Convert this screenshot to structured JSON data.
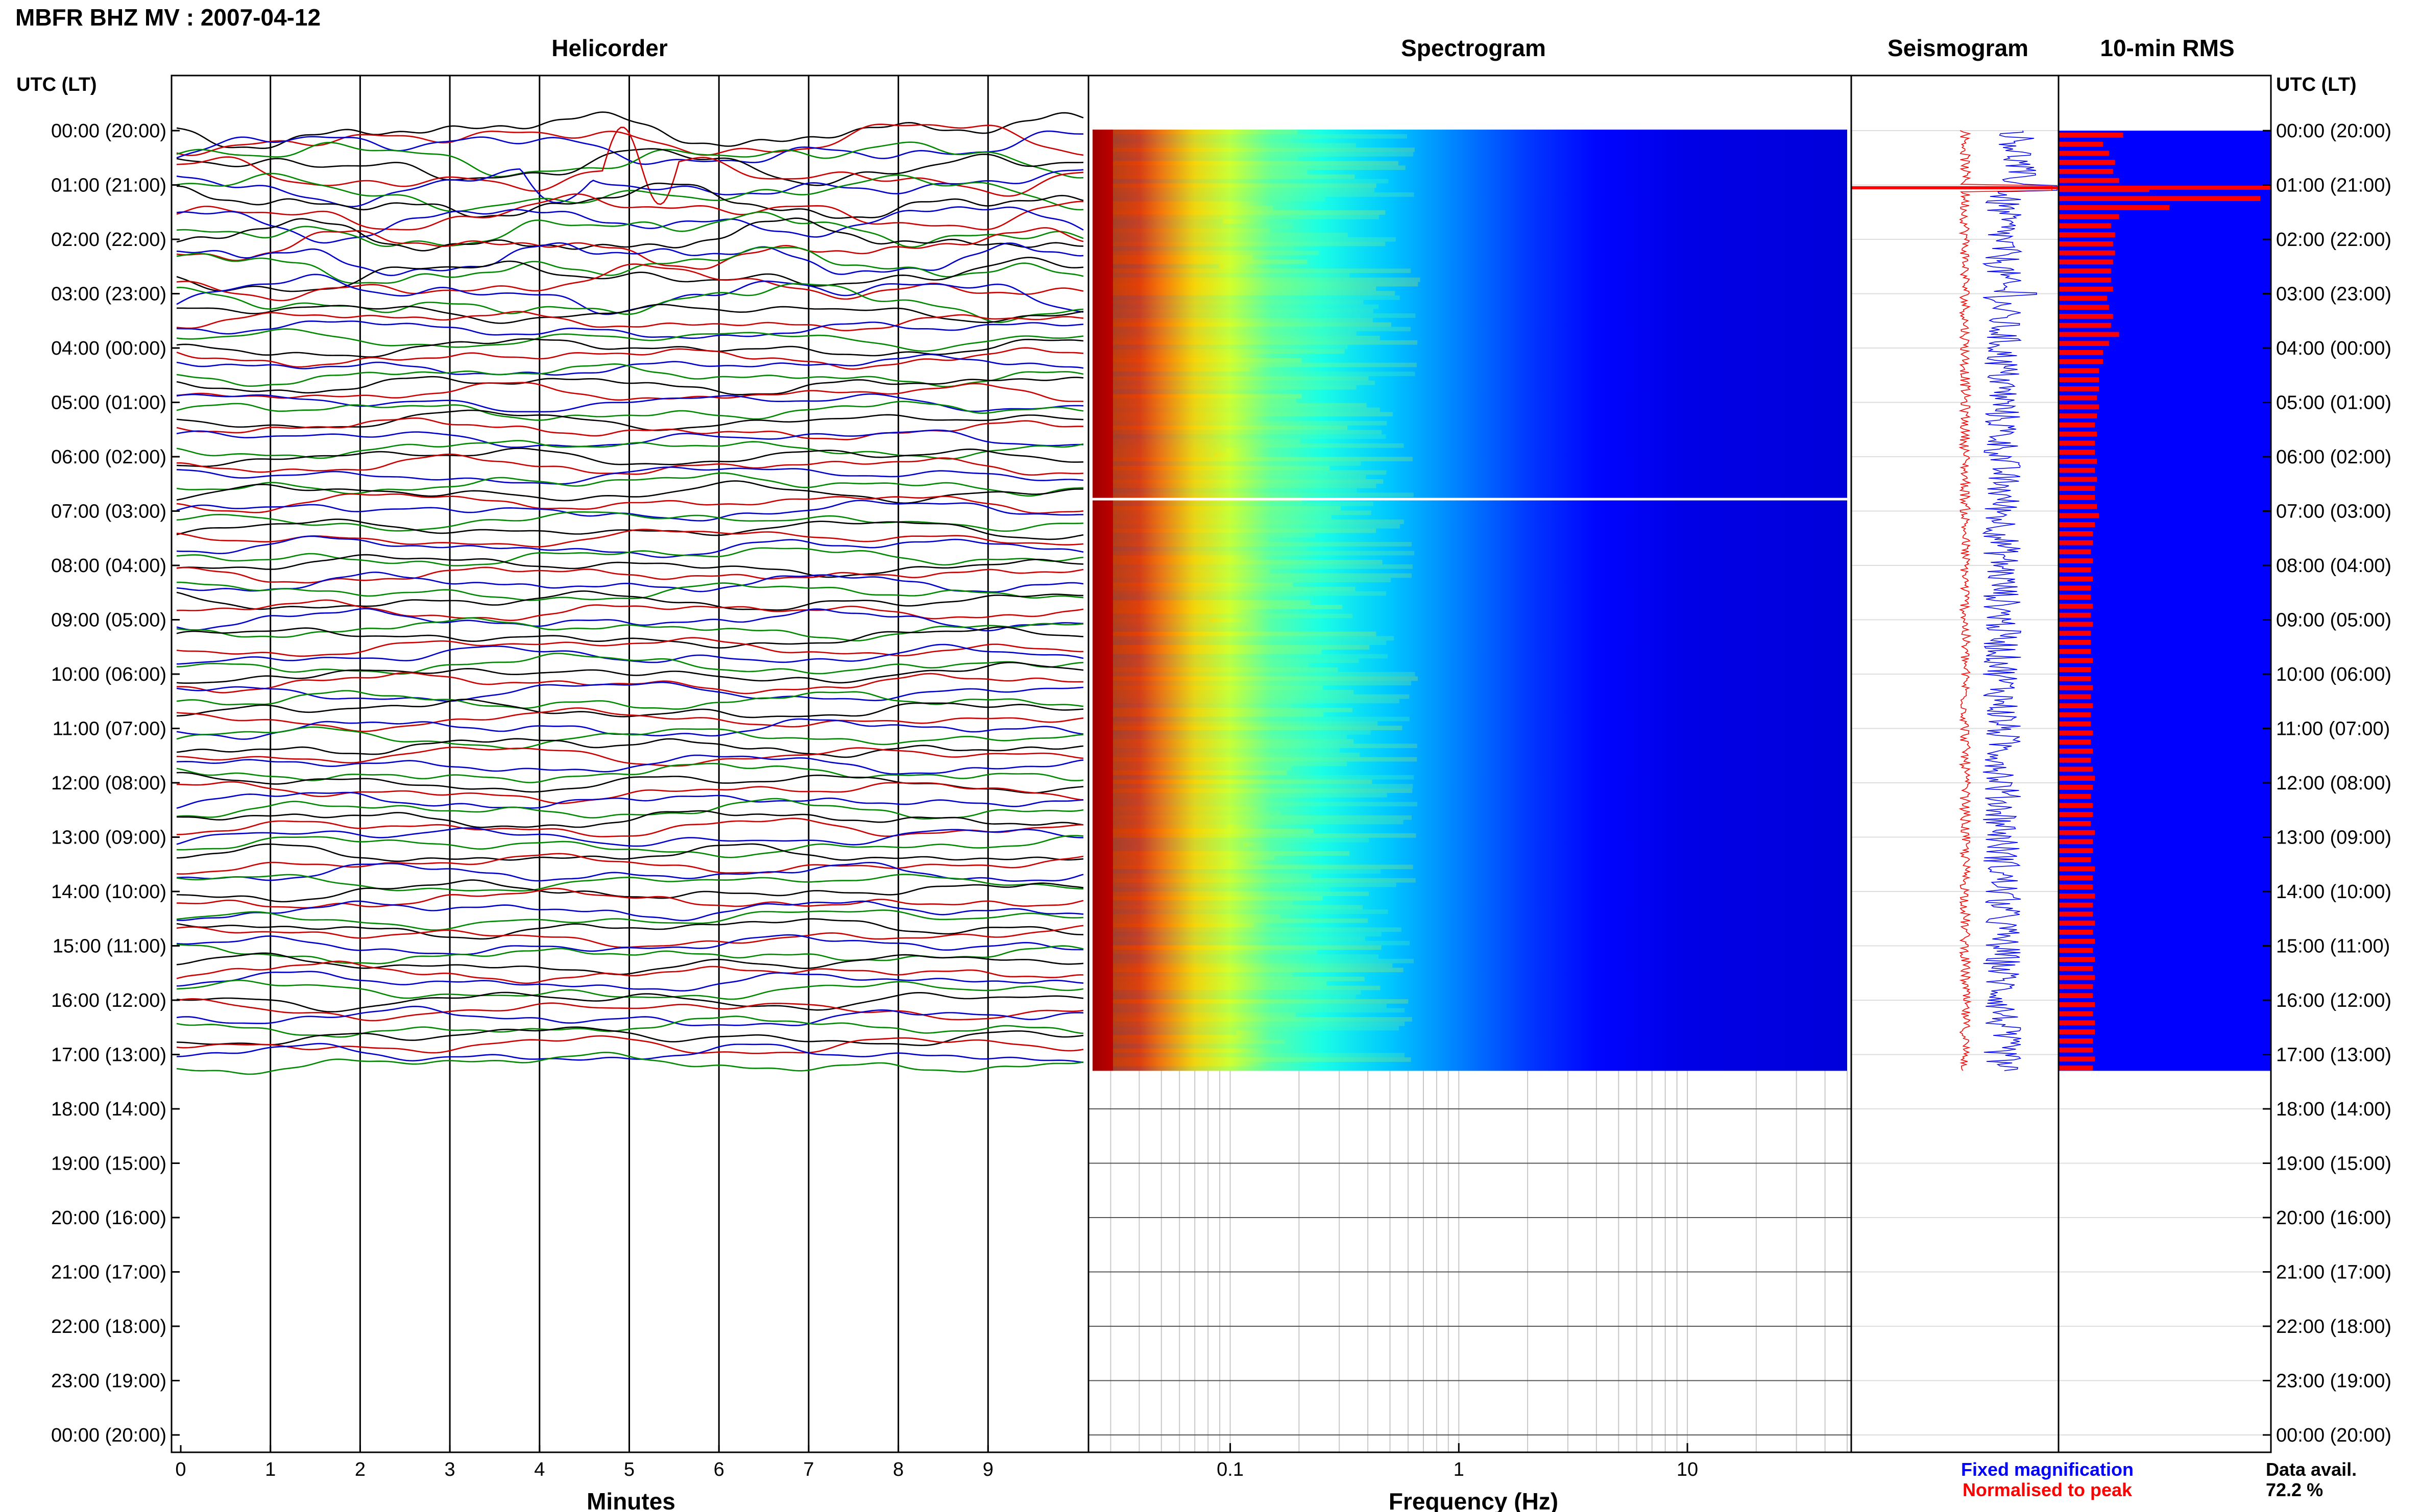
{
  "header": {
    "title": "MBFR BHZ MV : 2007-04-12",
    "utc_label_left": "UTC (LT)",
    "utc_label_right": "UTC (LT)"
  },
  "panels": {
    "helicorder_title": "Helicorder",
    "spectrogram_title": "Spectrogram",
    "seismogram_title": "Seismogram",
    "rms_title": "10-min RMS"
  },
  "time_labels": [
    "00:00 (20:00)",
    "01:00 (21:00)",
    "02:00 (22:00)",
    "03:00 (23:00)",
    "04:00 (00:00)",
    "05:00 (01:00)",
    "06:00 (02:00)",
    "07:00 (03:00)",
    "08:00 (04:00)",
    "09:00 (05:00)",
    "10:00 (06:00)",
    "11:00 (07:00)",
    "12:00 (08:00)",
    "13:00 (09:00)",
    "14:00 (10:00)",
    "15:00 (11:00)",
    "16:00 (12:00)",
    "17:00 (13:00)",
    "18:00 (14:00)",
    "19:00 (15:00)",
    "20:00 (16:00)",
    "21:00 (17:00)",
    "22:00 (18:00)",
    "23:00 (19:00)",
    "00:00 (20:00)"
  ],
  "legend": {
    "fixed": "Fixed magnification",
    "normalised": "Normalised to peak",
    "fixed_color": "#0000ff",
    "normalised_color": "#ff0000"
  },
  "availability": {
    "label": "Data avail.",
    "value": "72.2 %"
  },
  "colors": {
    "rms_background": "#0000ff",
    "rms_bar": "#ff0000",
    "seismo_fixed": "#0000ff",
    "seismo_normalised": "#ff0000",
    "trace_colors": [
      "#000000",
      "#cc0000",
      "#0000cc",
      "#008800"
    ],
    "spectrogram_colormap": "jet"
  },
  "chart_data": [
    {
      "type": "line",
      "name": "helicorder",
      "title": "Helicorder",
      "xlabel": "Minutes",
      "x_ticks": [
        "0",
        "1",
        "2",
        "3",
        "4",
        "5",
        "6",
        "7",
        "8",
        "9"
      ],
      "xlim": [
        0,
        10
      ],
      "rows_per_hour": 6,
      "data_hours": 17.3
    },
    {
      "type": "heatmap",
      "name": "spectrogram",
      "title": "Spectrogram",
      "xlabel": "Frequency (Hz)",
      "x_scale": "log",
      "x_ticks": [
        "0.1",
        "1",
        "10"
      ],
      "xlim": [
        0.025,
        50
      ],
      "data_hours": 17.3,
      "white_line_hour": 6.78
    },
    {
      "type": "line",
      "name": "seismogram",
      "title": "Seismogram",
      "series": [
        {
          "name": "Fixed magnification"
        },
        {
          "name": "Normalised to peak"
        }
      ],
      "data_hours": 17.3,
      "spike_hour": 1.05
    },
    {
      "type": "bar",
      "name": "10-min RMS",
      "title": "10-min RMS",
      "orientation": "horizontal",
      "interval_minutes": 10,
      "values": [
        0.32,
        0.22,
        0.25,
        0.28,
        0.27,
        0.3,
        0.45,
        1.0,
        0.55,
        0.3,
        0.26,
        0.28,
        0.27,
        0.28,
        0.27,
        0.26,
        0.26,
        0.27,
        0.24,
        0.25,
        0.27,
        0.26,
        0.3,
        0.25,
        0.22,
        0.22,
        0.2,
        0.2,
        0.2,
        0.19,
        0.2,
        0.19,
        0.18,
        0.19,
        0.18,
        0.18,
        0.19,
        0.18,
        0.19,
        0.18,
        0.18,
        0.19,
        0.2,
        0.18,
        0.17,
        0.17,
        0.16,
        0.17,
        0.16,
        0.17,
        0.16,
        0.16,
        0.17,
        0.16,
        0.17,
        0.16,
        0.16,
        0.16,
        0.17,
        0.16,
        0.16,
        0.17,
        0.16,
        0.17,
        0.16,
        0.16,
        0.17,
        0.16,
        0.17,
        0.16,
        0.17,
        0.18,
        0.17,
        0.16,
        0.17,
        0.17,
        0.16,
        0.18,
        0.17,
        0.17,
        0.16,
        0.18,
        0.17,
        0.17,
        0.18,
        0.17,
        0.17,
        0.18,
        0.17,
        0.18,
        0.17,
        0.18,
        0.17,
        0.18,
        0.17,
        0.17,
        0.18,
        0.17,
        0.18,
        0.18,
        0.17,
        0.17,
        0.18,
        0.17
      ]
    }
  ]
}
